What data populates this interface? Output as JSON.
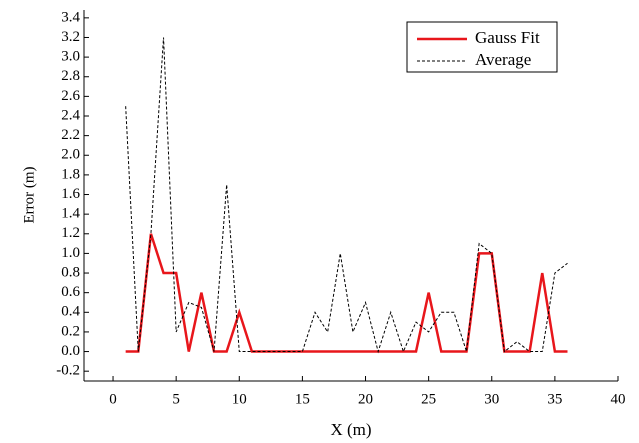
{
  "chart_data": {
    "type": "line",
    "x_label": "X (m)",
    "y_label": "Error (m)",
    "x": [
      1,
      2,
      3,
      4,
      5,
      6,
      7,
      8,
      9,
      10,
      11,
      12,
      13,
      14,
      15,
      16,
      17,
      18,
      19,
      20,
      21,
      22,
      23,
      24,
      25,
      26,
      27,
      28,
      29,
      30,
      31,
      32,
      33,
      34,
      35,
      36
    ],
    "series": [
      {
        "name": "Gauss Fit",
        "color": "#e8161b",
        "dashed": false,
        "values": [
          0,
          0,
          1.2,
          0.8,
          0.8,
          0,
          0.6,
          0,
          0,
          0.4,
          0,
          0,
          0,
          0,
          0,
          0,
          0,
          0,
          0,
          0,
          0,
          0,
          0,
          0,
          0.6,
          0,
          0,
          0,
          1.0,
          1.0,
          0,
          0,
          0,
          0.8,
          0,
          0
        ]
      },
      {
        "name": "Average",
        "color": "#000000",
        "dashed": true,
        "values": [
          2.5,
          0,
          1.2,
          3.2,
          0.2,
          0.5,
          0.45,
          0,
          1.7,
          0,
          0,
          0,
          0,
          0,
          0,
          0.4,
          0.2,
          1.0,
          0.2,
          0.5,
          0,
          0.4,
          0,
          0.3,
          0.2,
          0.4,
          0.4,
          0,
          1.1,
          1.0,
          0,
          0.1,
          0,
          0,
          0.8,
          0.9
        ]
      }
    ],
    "xlim": [
      -2.3,
      40
    ],
    "xticks": [
      0,
      5,
      10,
      15,
      20,
      25,
      30,
      35,
      40
    ],
    "ylim": [
      -0.3,
      3.48
    ],
    "yticks": [
      -0.2,
      {
        "value": 0,
        "label": "0.0"
      },
      0.2,
      0.4,
      0.6,
      0.8,
      {
        "value": 1,
        "label": "1.0"
      },
      1.2,
      1.4,
      1.6,
      1.8,
      {
        "value": 2,
        "label": "2.0"
      },
      2.2,
      2.4,
      2.6,
      2.8,
      {
        "value": 3,
        "label": "3.0"
      },
      3.2,
      3.4
    ],
    "legend": "top-right"
  }
}
